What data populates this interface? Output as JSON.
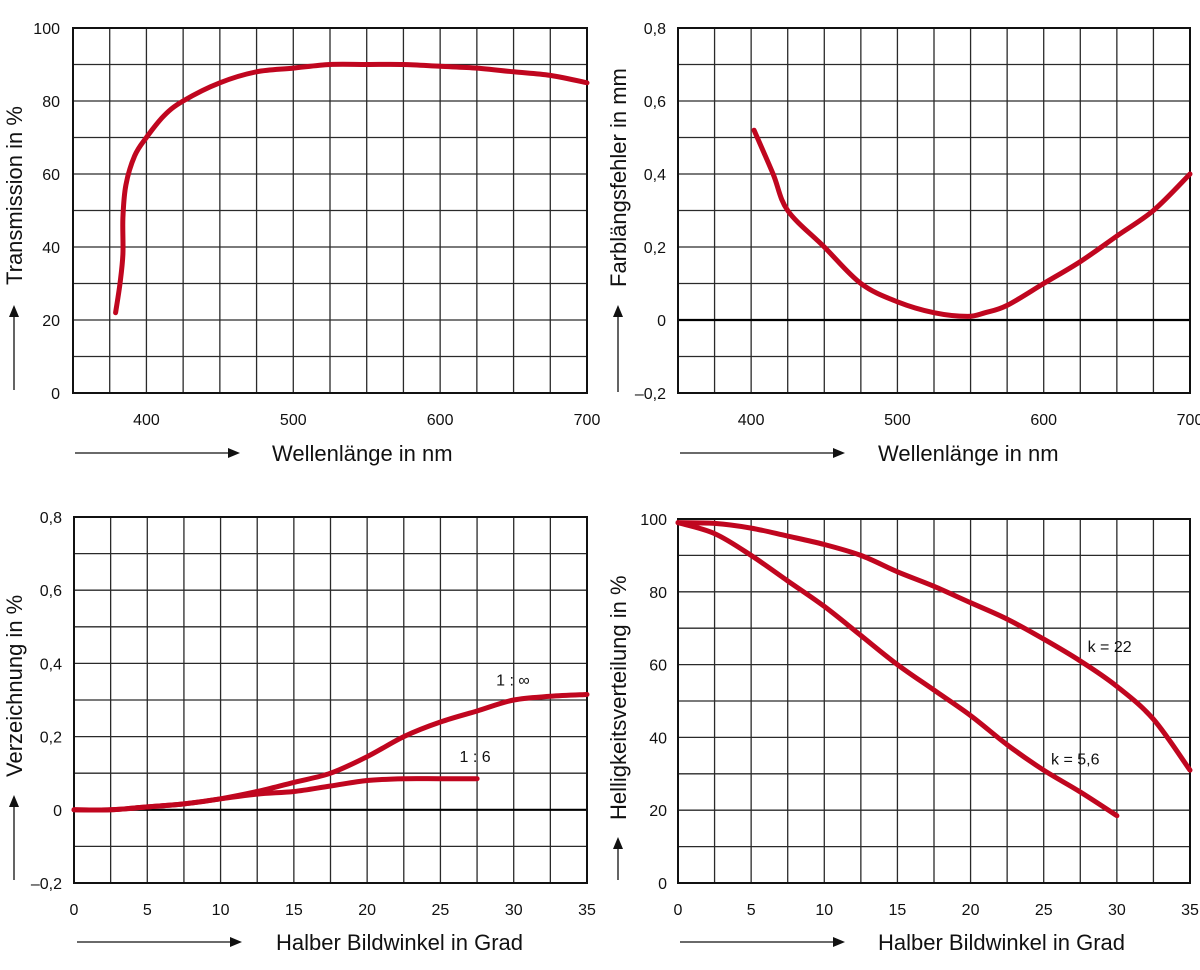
{
  "colors": {
    "curve": "#c0061f",
    "grid": "#2a2a2a"
  },
  "chart_data": [
    {
      "type": "line",
      "title": "",
      "xlabel": "Wellenlänge in nm",
      "ylabel": "Transmission in %",
      "xlim": [
        350,
        700
      ],
      "ylim": [
        0,
        100
      ],
      "xgrid_step": 25,
      "ygrid_step": 10,
      "grid": true,
      "xticks": [
        400,
        500,
        600,
        700
      ],
      "xtick_labels": [
        "400",
        "500",
        "600",
        "700"
      ],
      "yticks": [
        0,
        20,
        40,
        60,
        80,
        100
      ],
      "ytick_labels": [
        "0",
        "20",
        "40",
        "60",
        "80",
        "100"
      ],
      "series": [
        {
          "name": "Transmission",
          "x": [
            379,
            382,
            384,
            384,
            386,
            392,
            400,
            412,
            425,
            450,
            475,
            500,
            525,
            550,
            575,
            600,
            625,
            650,
            675,
            700
          ],
          "y": [
            22,
            30,
            38,
            48,
            57,
            65,
            70,
            76,
            80,
            85,
            88,
            89,
            90,
            90,
            90,
            89.5,
            89,
            88,
            87,
            85
          ]
        }
      ],
      "annotations": []
    },
    {
      "type": "line",
      "title": "",
      "xlabel": "Wellenlänge in nm",
      "ylabel": "Farblängsfehler in mm",
      "xlim": [
        350,
        700
      ],
      "ylim": [
        -0.2,
        0.8
      ],
      "xgrid_step": 25,
      "ygrid_step": 0.1,
      "grid": true,
      "xticks": [
        400,
        500,
        600,
        700
      ],
      "xtick_labels": [
        "400",
        "500",
        "600",
        "700"
      ],
      "yticks": [
        -0.2,
        0,
        0.2,
        0.4,
        0.6,
        0.8
      ],
      "ytick_labels": [
        "–0,2",
        "0",
        "0,2",
        "0,4",
        "0,6",
        "0,8"
      ],
      "series": [
        {
          "name": "Farblängsfehler",
          "x": [
            402,
            415,
            425,
            450,
            475,
            500,
            525,
            548,
            560,
            575,
            600,
            625,
            650,
            675,
            700
          ],
          "y": [
            0.52,
            0.4,
            0.3,
            0.2,
            0.1,
            0.05,
            0.02,
            0.01,
            0.02,
            0.04,
            0.1,
            0.16,
            0.23,
            0.3,
            0.4
          ]
        }
      ],
      "annotations": []
    },
    {
      "type": "line",
      "title": "",
      "xlabel": "Halber Bildwinkel in Grad",
      "ylabel": "Verzeichnung in %",
      "xlim": [
        0,
        35
      ],
      "ylim": [
        -0.2,
        0.8
      ],
      "xgrid_step": 2.5,
      "ygrid_step": 0.1,
      "grid": true,
      "xticks": [
        0,
        5,
        10,
        15,
        20,
        25,
        30,
        35
      ],
      "xtick_labels": [
        "0",
        "5",
        "10",
        "15",
        "20",
        "25",
        "30",
        "35"
      ],
      "yticks": [
        -0.2,
        0,
        0.2,
        0.4,
        0.6,
        0.8
      ],
      "ytick_labels": [
        "–0,2",
        "0",
        "0,2",
        "0,4",
        "0,6",
        "0,8"
      ],
      "series": [
        {
          "name": "1 : ∞",
          "x": [
            0,
            2.5,
            5,
            7.5,
            10,
            12.5,
            15,
            17.5,
            20,
            22.5,
            25,
            27.5,
            30,
            32.5,
            35
          ],
          "y": [
            0,
            0,
            0.008,
            0.016,
            0.03,
            0.05,
            0.075,
            0.1,
            0.145,
            0.2,
            0.24,
            0.27,
            0.3,
            0.31,
            0.315
          ]
        },
        {
          "name": "1 : 6",
          "x": [
            0,
            2.5,
            5,
            7.5,
            10,
            12.5,
            15,
            17.5,
            20,
            22.5,
            25,
            27.5
          ],
          "y": [
            0,
            0,
            0.008,
            0.016,
            0.03,
            0.043,
            0.05,
            0.065,
            0.08,
            0.085,
            0.085,
            0.085
          ]
        }
      ],
      "annotations": [
        {
          "text": "1 : ∞",
          "x": 28.8,
          "y": 0.34
        },
        {
          "text": "1 : 6",
          "x": 26.3,
          "y": 0.13
        }
      ]
    },
    {
      "type": "line",
      "title": "",
      "xlabel": "Halber Bildwinkel in Grad",
      "ylabel": "Helligkeitsverteilung in %",
      "xlim": [
        0,
        35
      ],
      "ylim": [
        0,
        100
      ],
      "xgrid_step": 2.5,
      "ygrid_step": 10,
      "grid": true,
      "xticks": [
        0,
        5,
        10,
        15,
        20,
        25,
        30,
        35
      ],
      "xtick_labels": [
        "0",
        "5",
        "10",
        "15",
        "20",
        "25",
        "30",
        "35"
      ],
      "yticks": [
        0,
        20,
        40,
        60,
        80,
        100
      ],
      "ytick_labels": [
        "0",
        "20",
        "40",
        "60",
        "80",
        "100"
      ],
      "series": [
        {
          "name": "k = 22",
          "x": [
            0,
            2.5,
            5,
            7.5,
            10,
            12.5,
            15,
            17.5,
            20,
            22.5,
            25,
            27.5,
            30,
            32.5,
            35
          ],
          "y": [
            99,
            98.8,
            97.5,
            95.3,
            93,
            90,
            85.5,
            81.5,
            77,
            72.5,
            67,
            61,
            54,
            45,
            31
          ]
        },
        {
          "name": "k = 5,6",
          "x": [
            0,
            2.5,
            5,
            7.5,
            10,
            12.5,
            15,
            17.5,
            20,
            22.5,
            25,
            27.5,
            30
          ],
          "y": [
            99,
            96,
            90,
            83,
            76,
            68,
            60,
            53,
            46,
            38,
            31,
            25,
            18.5
          ]
        }
      ],
      "annotations": [
        {
          "text": "k = 22",
          "x": 28,
          "y": 63.5
        },
        {
          "text": "k = 5,6",
          "x": 25.5,
          "y": 32.5
        }
      ]
    }
  ]
}
